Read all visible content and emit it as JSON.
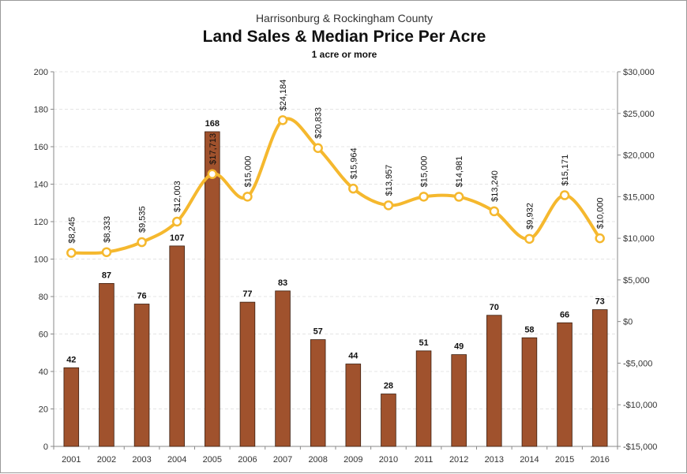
{
  "header": {
    "supertitle": "Harrisonburg & Rockingham County",
    "title": "Land Sales & Median Price Per Acre",
    "subtitle": "1 acre or more"
  },
  "colors": {
    "bar": "#A0522D",
    "bar_edge": "#3b1e0f",
    "line": "#F5B82E",
    "marker_fill": "#ffffff",
    "grid": "#e4e4e4",
    "axis": "#8a8a8a"
  },
  "chart_data": {
    "type": "bar+line",
    "categories": [
      "2001",
      "2002",
      "2003",
      "2004",
      "2005",
      "2006",
      "2007",
      "2008",
      "2009",
      "2010",
      "2011",
      "2012",
      "2013",
      "2014",
      "2015",
      "2016"
    ],
    "series": [
      {
        "type": "bar",
        "axis": "left",
        "values": [
          42,
          87,
          76,
          107,
          168,
          77,
          83,
          57,
          44,
          28,
          51,
          49,
          70,
          58,
          66,
          73
        ],
        "labels": [
          "42",
          "87",
          "76",
          "107",
          "168",
          "77",
          "83",
          "57",
          "44",
          "28",
          "51",
          "49",
          "70",
          "58",
          "66",
          "73"
        ]
      },
      {
        "type": "line",
        "axis": "right",
        "smooth": true,
        "values": [
          8245,
          8333,
          9535,
          12003,
          17713,
          15000,
          24184,
          20833,
          15964,
          13957,
          15000,
          14981,
          13240,
          9932,
          15171,
          10000
        ],
        "labels": [
          "$8,245",
          "$8,333",
          "$9,535",
          "$12,003",
          "$17,713",
          "$15,000",
          "$24,184",
          "$20,833",
          "$15,964",
          "$13,957",
          "$15,000",
          "$14,981",
          "$13,240",
          "$9,932",
          "$15,171",
          "$10,000"
        ]
      }
    ],
    "left_axis": {
      "ylim": [
        0,
        200
      ],
      "ticks": [
        0,
        20,
        40,
        60,
        80,
        100,
        120,
        140,
        160,
        180,
        200
      ],
      "tick_labels": [
        "0",
        "20",
        "40",
        "60",
        "80",
        "100",
        "120",
        "140",
        "160",
        "180",
        "200"
      ]
    },
    "right_axis": {
      "ylim": [
        -15000,
        30000
      ],
      "ticks": [
        -15000,
        -10000,
        -5000,
        0,
        5000,
        10000,
        15000,
        20000,
        25000,
        30000
      ],
      "tick_labels": [
        "-$15,000",
        "-$10,000",
        "-$5,000",
        "$0",
        "$5,000",
        "$10,000",
        "$15,000",
        "$20,000",
        "$25,000",
        "$30,000"
      ]
    },
    "grid": true,
    "legend": "none"
  }
}
